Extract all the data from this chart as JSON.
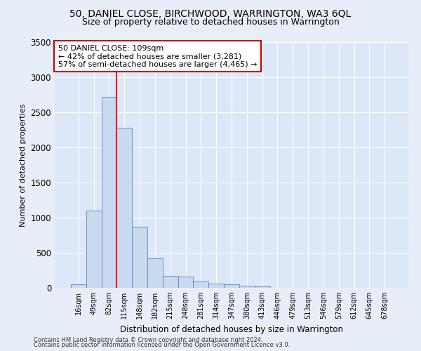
{
  "title": "50, DANIEL CLOSE, BIRCHWOOD, WARRINGTON, WA3 6QL",
  "subtitle": "Size of property relative to detached houses in Warrington",
  "xlabel": "Distribution of detached houses by size in Warrington",
  "ylabel": "Number of detached properties",
  "footnote1": "Contains HM Land Registry data © Crown copyright and database right 2024.",
  "footnote2": "Contains public sector information licensed under the Open Government Licence v3.0.",
  "bar_labels": [
    "16sqm",
    "49sqm",
    "82sqm",
    "115sqm",
    "148sqm",
    "182sqm",
    "215sqm",
    "248sqm",
    "281sqm",
    "314sqm",
    "347sqm",
    "380sqm",
    "413sqm",
    "446sqm",
    "479sqm",
    "513sqm",
    "546sqm",
    "579sqm",
    "612sqm",
    "645sqm",
    "678sqm"
  ],
  "bar_values": [
    55,
    1100,
    2720,
    2280,
    870,
    420,
    170,
    165,
    90,
    60,
    55,
    30,
    25,
    5,
    0,
    0,
    0,
    0,
    0,
    0,
    0
  ],
  "bar_color": "#c9d9f0",
  "bar_edge_color": "#5588bb",
  "vline_pos": 2.5,
  "annotation_text_line1": "50 DANIEL CLOSE: 109sqm",
  "annotation_text_line2": "← 42% of detached houses are smaller (3,281)",
  "annotation_text_line3": "57% of semi-detached houses are larger (4,465) →",
  "ylim": [
    0,
    3500
  ],
  "background_color": "#e8eef8",
  "plot_bg_color": "#dce8f8",
  "grid_color": "#ffffff",
  "box_edge_color": "#cc0000",
  "title_fontsize": 10,
  "subtitle_fontsize": 9,
  "ylabel_fontsize": 8,
  "xlabel_fontsize": 8.5,
  "tick_fontsize": 7,
  "annotation_fontsize": 8,
  "footnote_fontsize": 6
}
